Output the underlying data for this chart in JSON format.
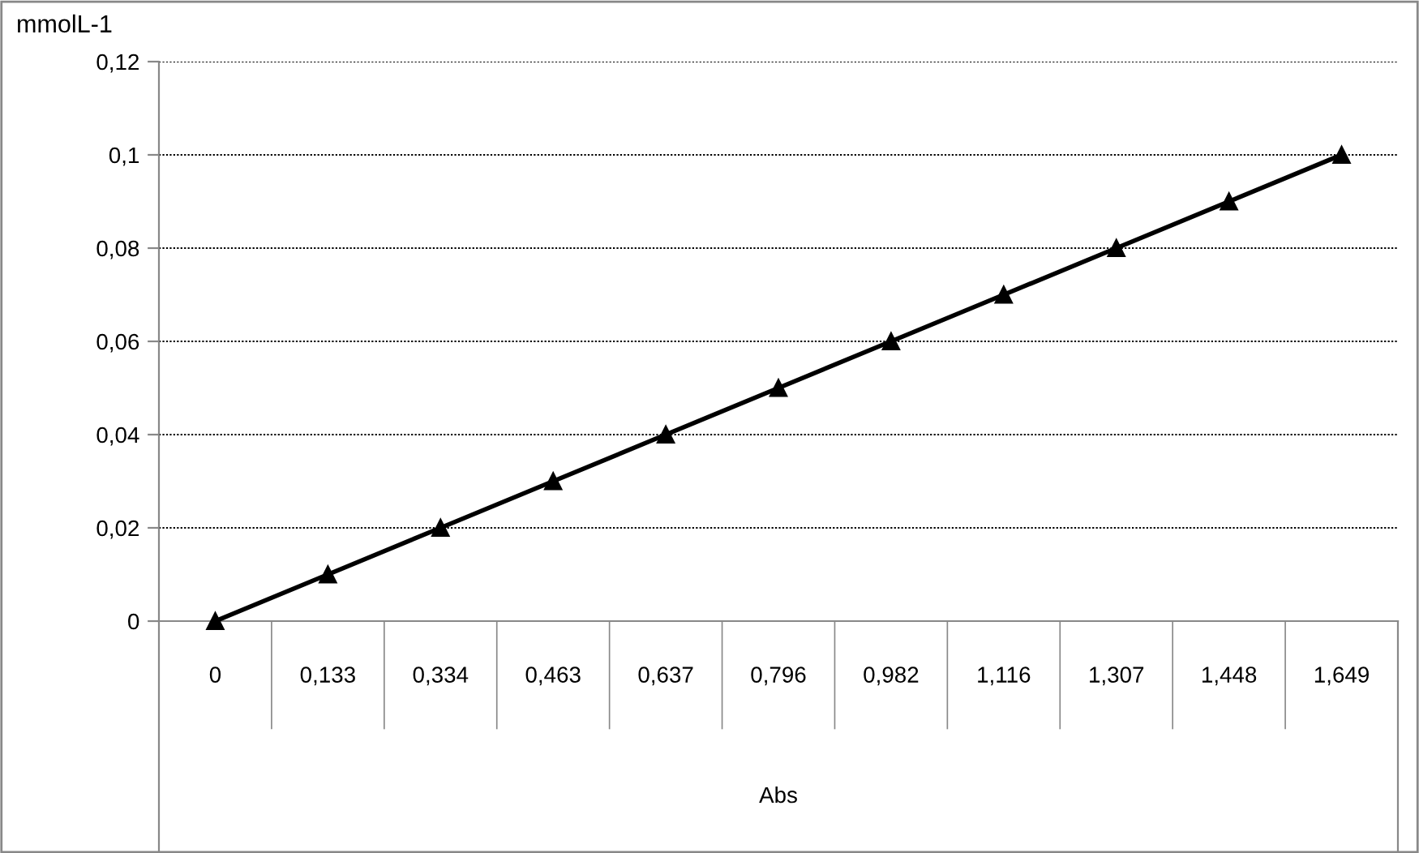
{
  "chart_data": {
    "type": "line",
    "ylabel": "mmolL-1",
    "xlabel": "Abs",
    "categories": [
      "0",
      "0,133",
      "0,334",
      "0,463",
      "0,637",
      "0,796",
      "0,982",
      "1,116",
      "1,307",
      "1,448",
      "1,649"
    ],
    "series": [
      {
        "color": "#000000",
        "values": [
          0,
          0.01,
          0.02,
          0.03,
          0.04,
          0.05,
          0.06,
          0.07,
          0.08,
          0.09,
          0.1
        ]
      }
    ],
    "ylim": [
      0,
      0.12
    ],
    "yticks": [
      0,
      {
        "value": 0.02,
        "label": "0,02"
      },
      {
        "value": 0.04,
        "label": "0,04"
      },
      {
        "value": 0.06,
        "label": "0,06"
      },
      {
        "value": 0.08,
        "label": "0,08"
      },
      {
        "value": 0.1,
        "label": "0,1"
      },
      {
        "value": 0.12,
        "label": "0,12"
      }
    ],
    "grid": "y",
    "marker": "triangle",
    "line_style": "solid",
    "legend": false
  }
}
